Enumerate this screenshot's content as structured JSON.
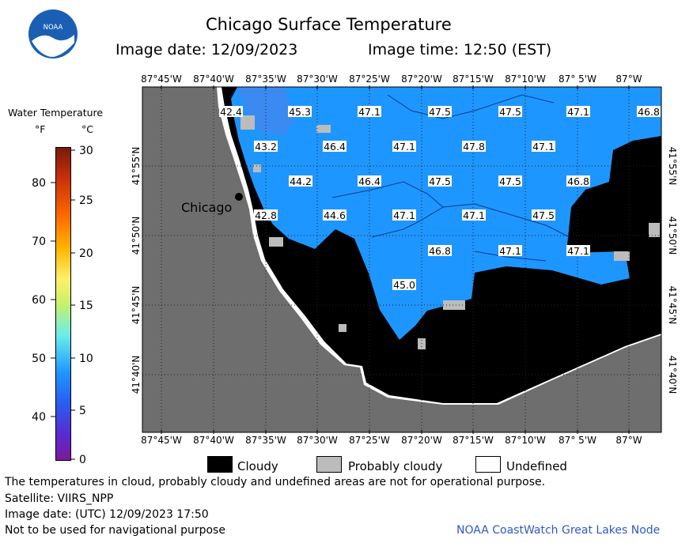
{
  "header": {
    "title": "Chicago Surface Temperature",
    "image_date": "Image date: 12/09/2023",
    "image_time": "Image time: 12:50 (EST)"
  },
  "logo": {
    "text": "NOAA"
  },
  "colorbar": {
    "title": "Water Temperature",
    "unit_f": "°F",
    "unit_c": "°C",
    "f_ticks": [
      "80",
      "70",
      "60",
      "50",
      "40"
    ],
    "c_ticks": [
      "30",
      "25",
      "20",
      "15",
      "10",
      "5",
      "0"
    ]
  },
  "axes": {
    "lon_labels": [
      "87°45'W",
      "87°40'W",
      "87°35'W",
      "87°30'W",
      "87°25'W",
      "87°20'W",
      "87°15'W",
      "87°10'W",
      "87° 5'W",
      "87°W"
    ],
    "lat_labels": [
      "41°55'N",
      "41°50'N",
      "41°45'N",
      "41°40'N"
    ]
  },
  "city": {
    "name": "Chicago"
  },
  "temperatures": [
    "42.4",
    "45.3",
    "47.1",
    "47.5",
    "47.5",
    "47.1",
    "46.8",
    "43.2",
    "46.4",
    "47.1",
    "47.8",
    "47.1",
    "44.2",
    "46.4",
    "47.5",
    "47.5",
    "46.8",
    "42.8",
    "44.6",
    "47.1",
    "47.1",
    "47.5",
    "46.8",
    "47.1",
    "47.1",
    "45.0"
  ],
  "legend": {
    "cloudy": "Cloudy",
    "probably_cloudy": "Probably cloudy",
    "undefined": "Undefined",
    "cloudy_color": "#000000",
    "probably_cloudy_color": "#bcbcbc",
    "undefined_color": "#ffffff",
    "water_color": "#1e96ff",
    "land_color": "#6e6e6e"
  },
  "footer": {
    "note": "The temperatures in cloud, probably cloudy and undefined areas are not for operational purpose.",
    "satellite": "Satellite: VIIRS_NPP",
    "utc_date": "Image date: (UTC) 12/09/2023  17:50",
    "nav_warning": "Not to be used for navigational purpose",
    "credit": "NOAA CoastWatch Great Lakes Node"
  }
}
